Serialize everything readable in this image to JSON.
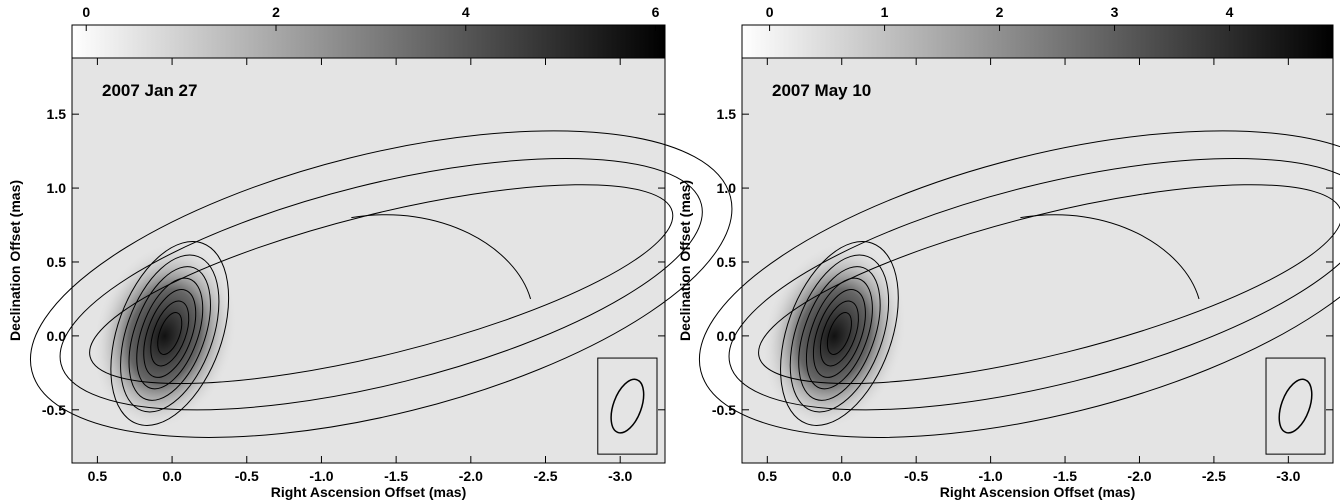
{
  "chart_data": [
    {
      "type": "image",
      "annotation": "2007 Jan 27",
      "xlabel": "Right Ascension Offset (mas)",
      "ylabel": "Declination Offset (mas)",
      "xlim": [
        0.67,
        -3.3
      ],
      "ylim": [
        -0.86,
        1.88
      ],
      "xticks": [
        0.5,
        {
          "value": 0,
          "label": "0.0"
        },
        -0.5,
        {
          "value": -1,
          "label": "-1.0"
        },
        -1.5,
        {
          "value": -2,
          "label": "-2.0"
        },
        -2.5,
        {
          "value": -3,
          "label": "-3.0"
        }
      ],
      "yticks": [
        -0.5,
        {
          "value": 0,
          "label": "0.0"
        },
        0.5,
        {
          "value": 1,
          "label": "1.0"
        },
        1.5
      ],
      "colorbar": {
        "lim": [
          -0.15,
          6.1
        ],
        "ticks": [
          0,
          2,
          4,
          6
        ]
      }
    },
    {
      "type": "image",
      "annotation": "2007 May 10",
      "xlabel": "Right Ascension Offset (mas)",
      "ylabel": "Declination Offset (mas)",
      "xlim": [
        0.67,
        -3.3
      ],
      "ylim": [
        -0.86,
        1.88
      ],
      "xticks": [
        0.5,
        {
          "value": 0,
          "label": "0.0"
        },
        -0.5,
        {
          "value": -1,
          "label": "-1.0"
        },
        -1.5,
        {
          "value": -2,
          "label": "-2.0"
        },
        -2.5,
        {
          "value": -3,
          "label": "-3.0"
        }
      ],
      "yticks": [
        -0.5,
        {
          "value": 0,
          "label": "0.0"
        },
        0.5,
        {
          "value": 1,
          "label": "1.0"
        },
        1.5
      ],
      "colorbar": {
        "lim": [
          -0.24,
          4.9
        ],
        "ticks": [
          0,
          1,
          2,
          3,
          4
        ]
      }
    }
  ]
}
